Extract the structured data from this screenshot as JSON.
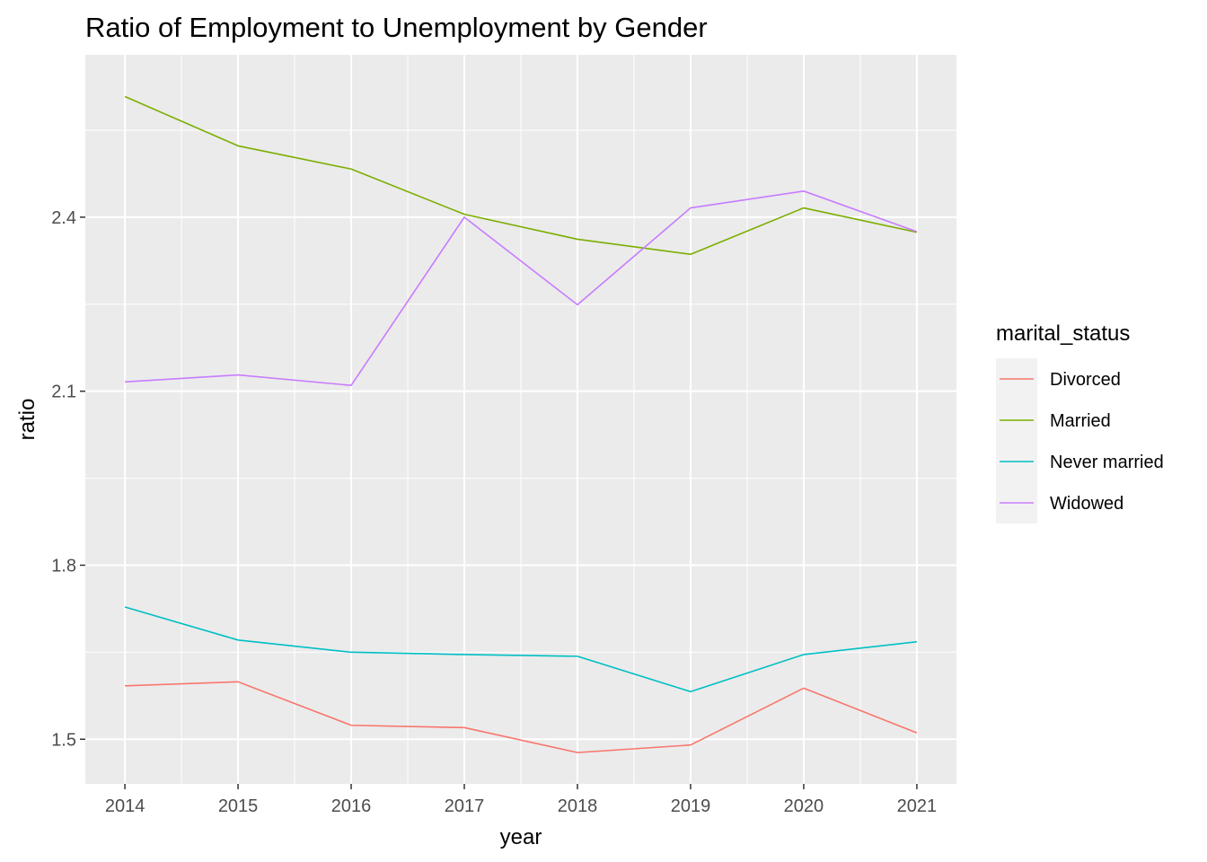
{
  "chart_data": {
    "type": "line",
    "title": "Ratio of Employment to Unemployment by Gender",
    "xlabel": "year",
    "ylabel": "ratio",
    "x": [
      2014,
      2015,
      2016,
      2017,
      2018,
      2019,
      2020,
      2021
    ],
    "x_tick_labels": [
      "2014",
      "2015",
      "2016",
      "2017",
      "2018",
      "2019",
      "2020",
      "2021"
    ],
    "y_ticks": [
      1.5,
      1.8,
      2.1,
      2.4
    ],
    "y_tick_labels": [
      "1.5",
      "1.8",
      "2.1",
      "2.4"
    ],
    "xlim": [
      2013.65,
      2021.35
    ],
    "ylim": [
      1.423,
      2.68
    ],
    "grid": true,
    "legend_title": "marital_status",
    "legend_position": "right",
    "series": [
      {
        "name": "Divorced",
        "color": "#F8766D",
        "values": [
          1.592,
          1.599,
          1.524,
          1.52,
          1.477,
          1.49,
          1.588,
          1.511
        ]
      },
      {
        "name": "Married",
        "color": "#7CAE00",
        "values": [
          2.608,
          2.523,
          2.483,
          2.405,
          2.362,
          2.336,
          2.416,
          2.374
        ]
      },
      {
        "name": "Never married",
        "color": "#00BFC4",
        "values": [
          1.728,
          1.671,
          1.65,
          1.646,
          1.643,
          1.582,
          1.646,
          1.668
        ]
      },
      {
        "name": "Widowed",
        "color": "#C77CFF",
        "values": [
          2.116,
          2.128,
          2.11,
          2.4,
          2.249,
          2.416,
          2.445,
          2.375
        ]
      }
    ]
  }
}
